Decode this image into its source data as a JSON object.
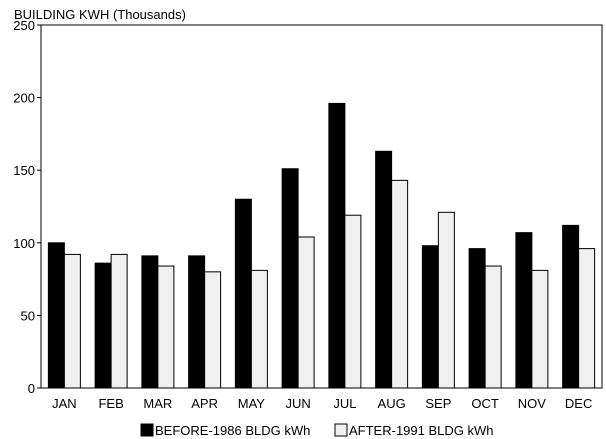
{
  "chart_data": {
    "type": "bar",
    "title": "",
    "ylabel": "BUILDING KWH (Thousands)",
    "xlabel": "",
    "categories": [
      "JAN",
      "FEB",
      "MAR",
      "APR",
      "MAY",
      "JUN",
      "JUL",
      "AUG",
      "SEP",
      "OCT",
      "NOV",
      "DEC"
    ],
    "series": [
      {
        "name": "BEFORE-1986 BLDG kWh",
        "color": "#000000",
        "values": [
          100,
          86,
          91,
          91,
          130,
          151,
          196,
          163,
          98,
          96,
          107,
          112
        ]
      },
      {
        "name": "AFTER-1991 BLDG kWh",
        "color": "#f0f0f0",
        "values": [
          92,
          92,
          84,
          80,
          81,
          104,
          119,
          143,
          121,
          84,
          81,
          96
        ]
      }
    ],
    "ylim": [
      0,
      250
    ],
    "yticks": [
      0,
      50,
      100,
      150,
      200,
      250
    ],
    "grid": false,
    "legend_position": "bottom"
  }
}
